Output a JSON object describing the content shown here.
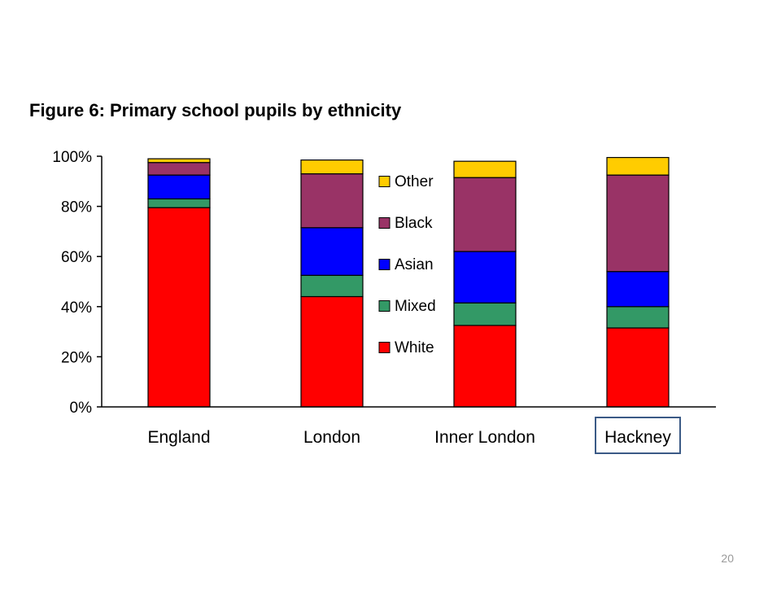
{
  "page_number": "20",
  "chart_data": {
    "type": "bar",
    "stacked": true,
    "title": "Figure 6: Primary school pupils by ethnicity",
    "categories": [
      "England",
      "London",
      "Inner London",
      "Hackney"
    ],
    "highlighted_category": "Hackney",
    "highlight_color": "#3b5a86",
    "series": [
      {
        "name": "White",
        "color": "#ff0000",
        "values": [
          79.5,
          44,
          32.5,
          31.5
        ]
      },
      {
        "name": "Mixed",
        "color": "#339966",
        "values": [
          3.5,
          8.5,
          9,
          8.5
        ]
      },
      {
        "name": "Asian",
        "color": "#0000ff",
        "values": [
          9.5,
          19,
          20.5,
          14
        ]
      },
      {
        "name": "Black",
        "color": "#993366",
        "values": [
          5,
          21.5,
          29.5,
          38.5
        ]
      },
      {
        "name": "Other",
        "color": "#ffcc00",
        "values": [
          1.5,
          5.5,
          6.5,
          7
        ]
      }
    ],
    "legend_order": [
      "Other",
      "Black",
      "Asian",
      "Mixed",
      "White"
    ],
    "y_ticks": [
      "0%",
      "20%",
      "40%",
      "60%",
      "80%",
      "100%"
    ],
    "ylim": [
      0,
      100
    ],
    "xlabel": "",
    "ylabel": "",
    "grid": false,
    "legend_position": "center"
  }
}
